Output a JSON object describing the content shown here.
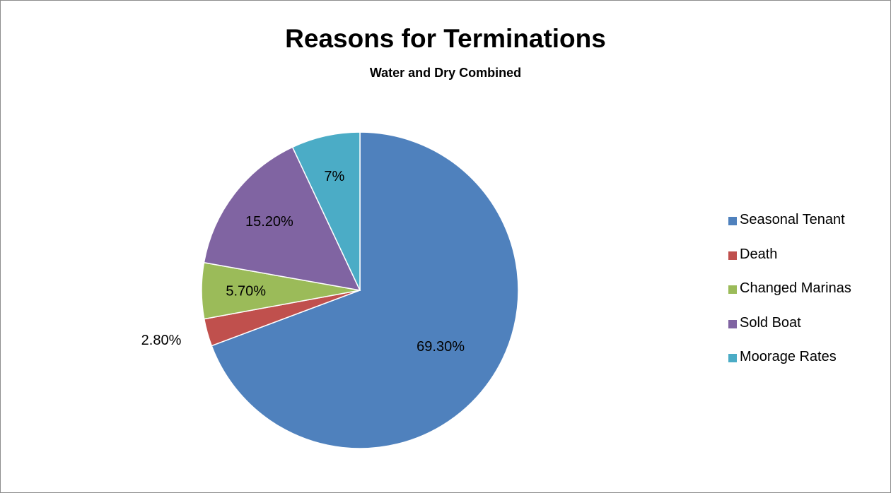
{
  "chart_data": {
    "type": "pie",
    "title": "Reasons for Terminations",
    "subtitle": "Water and Dry Combined",
    "categories": [
      "Seasonal Tenant",
      "Death",
      "Changed Marinas",
      "Sold Boat",
      "Moorage Rates"
    ],
    "values": [
      69.3,
      2.8,
      5.7,
      15.2,
      7.0
    ],
    "data_labels": [
      "69.30%",
      "2.80%",
      "5.70%",
      "15.20%",
      "7%"
    ],
    "colors": [
      "#4F81BD",
      "#C0504D",
      "#9BBB59",
      "#8064A2",
      "#4BACC6"
    ],
    "start_angle": "12 o'clock",
    "direction": "clockwise",
    "legend_position": "right"
  }
}
